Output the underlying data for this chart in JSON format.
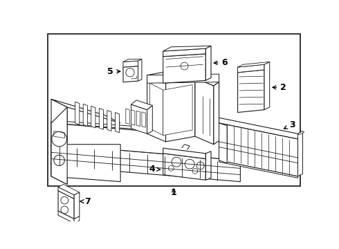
{
  "background_color": "#ffffff",
  "border_color": "#111111",
  "line_color": "#1a1a1a",
  "label_color": "#000000",
  "arrow_color": "#000000",
  "figsize": [
    4.9,
    3.6
  ],
  "dpi": 100
}
